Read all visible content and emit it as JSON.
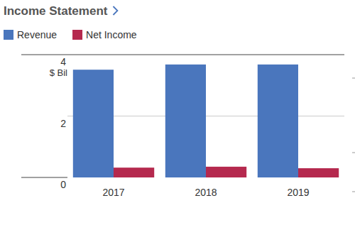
{
  "chart_data": {
    "type": "bar",
    "title": "Income Statement",
    "ylabel": "$ Bil",
    "categories": [
      "2017",
      "2018",
      "2019"
    ],
    "series": [
      {
        "name": "Revenue",
        "color": "#4a76bd",
        "values": [
          3.51,
          3.68,
          3.68
        ]
      },
      {
        "name": "Net Income",
        "color": "#b5294e",
        "values": [
          0.32,
          0.35,
          0.3
        ]
      }
    ],
    "ylim": [
      0,
      4
    ],
    "yticks": [
      0,
      2,
      4
    ],
    "grid": true,
    "legend": "top-left"
  }
}
